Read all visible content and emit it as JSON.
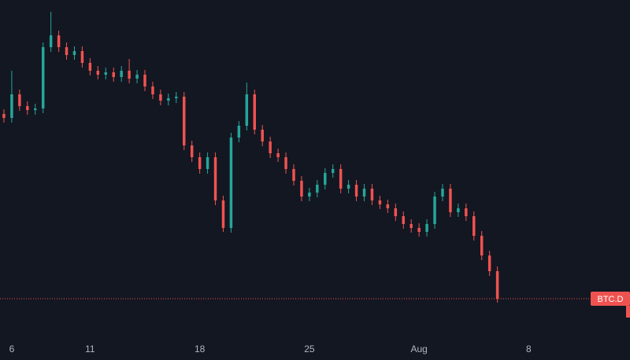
{
  "chart_data": {
    "type": "candlestick",
    "price_label": "BTC.D",
    "up_color": "#26a69a",
    "down_color": "#ef5350",
    "xlim": [
      5.25,
      42.7
    ],
    "ylim": [
      0,
      425
    ],
    "xticks": [
      6,
      11,
      18,
      25,
      {
        "value": 32,
        "label": "Aug"
      },
      {
        "value": 39,
        "label": "8"
      }
    ],
    "x": [
      5.5,
      6,
      6.5,
      7,
      7.5,
      8,
      8.5,
      9,
      9.5,
      10,
      10.5,
      11,
      11.5,
      12,
      12.5,
      13,
      13.5,
      14,
      14.5,
      15,
      15.5,
      16,
      16.5,
      17,
      17.5,
      18,
      18.5,
      19,
      19.5,
      20,
      20.5,
      21,
      21.5,
      22,
      22.5,
      23,
      23.5,
      24,
      24.5,
      25,
      25.5,
      26,
      26.5,
      27,
      27.5,
      28,
      28.5,
      29,
      29.5,
      30,
      30.5,
      31,
      31.5,
      32,
      32.5,
      33,
      33.5,
      34,
      34.5,
      35,
      35.5,
      36,
      36.5,
      37
    ],
    "open": [
      280,
      275,
      305,
      290,
      285,
      287,
      365,
      380,
      365,
      355,
      360,
      345,
      335,
      330,
      333,
      327,
      335,
      325,
      330,
      315,
      305,
      297,
      300,
      302,
      240,
      225,
      210,
      225,
      170,
      135,
      250,
      265,
      305,
      260,
      245,
      230,
      225,
      210,
      195,
      175,
      180,
      190,
      205,
      210,
      185,
      190,
      175,
      185,
      170,
      165,
      160,
      150,
      140,
      135,
      130,
      140,
      175,
      185,
      155,
      160,
      150,
      125,
      100,
      80
    ],
    "high": [
      286,
      335,
      311,
      296,
      293,
      371,
      410,
      386,
      371,
      366,
      366,
      351,
      341,
      339,
      339,
      341,
      350,
      336,
      336,
      321,
      311,
      306,
      308,
      308,
      246,
      231,
      231,
      231,
      176,
      256,
      271,
      320,
      311,
      266,
      251,
      236,
      231,
      216,
      201,
      186,
      196,
      211,
      216,
      216,
      196,
      196,
      191,
      191,
      176,
      171,
      166,
      156,
      146,
      141,
      146,
      181,
      191,
      191,
      166,
      166,
      156,
      131,
      106,
      86
    ],
    "low": [
      269,
      269,
      284,
      279,
      279,
      281,
      359,
      359,
      349,
      349,
      339,
      329,
      324,
      324,
      321,
      321,
      319,
      319,
      309,
      299,
      291,
      291,
      294,
      234,
      219,
      204,
      204,
      164,
      130,
      129,
      244,
      259,
      254,
      239,
      224,
      219,
      204,
      189,
      169,
      169,
      174,
      184,
      199,
      179,
      179,
      169,
      169,
      164,
      159,
      154,
      144,
      134,
      129,
      124,
      124,
      134,
      169,
      149,
      149,
      144,
      119,
      94,
      74,
      40
    ],
    "close": [
      275,
      305,
      290,
      285,
      287,
      365,
      380,
      365,
      355,
      360,
      345,
      335,
      330,
      333,
      327,
      335,
      325,
      330,
      315,
      305,
      297,
      300,
      302,
      240,
      225,
      210,
      225,
      170,
      135,
      250,
      265,
      305,
      260,
      245,
      230,
      225,
      210,
      195,
      175,
      180,
      190,
      205,
      210,
      185,
      190,
      175,
      185,
      170,
      165,
      160,
      150,
      140,
      135,
      130,
      140,
      175,
      185,
      155,
      160,
      150,
      125,
      100,
      80,
      45
    ]
  }
}
